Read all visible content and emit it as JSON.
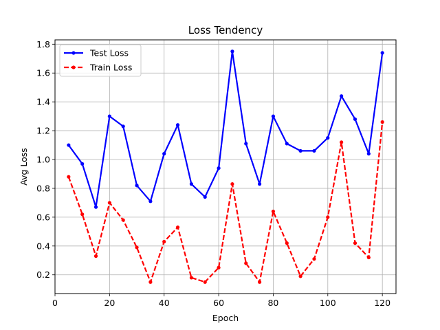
{
  "chart_data": {
    "type": "line",
    "title": "Loss Tendency",
    "xlabel": "Epoch",
    "ylabel": "Avg Loss",
    "xlim": [
      0,
      125
    ],
    "ylim": [
      0.07,
      1.83
    ],
    "xticks": [
      0,
      20,
      40,
      60,
      80,
      100,
      120
    ],
    "yticks": [
      0.2,
      0.4,
      0.6,
      0.8,
      1.0,
      1.2,
      1.4,
      1.6,
      1.8
    ],
    "ytick_labels": [
      "0.2",
      "0.4",
      "0.6",
      "0.8",
      "1.0",
      "1.2",
      "1.4",
      "1.6",
      "1.8"
    ],
    "grid": true,
    "legend_position": "top-left",
    "x": [
      5,
      10,
      15,
      20,
      25,
      30,
      35,
      40,
      45,
      50,
      55,
      60,
      65,
      70,
      75,
      80,
      85,
      90,
      95,
      100,
      105,
      110,
      115,
      120
    ],
    "series": [
      {
        "name": "Test Loss",
        "color": "#0000ff",
        "style": "solid",
        "values": [
          1.1,
          0.97,
          0.67,
          1.3,
          1.23,
          0.82,
          0.71,
          1.04,
          1.24,
          0.83,
          0.74,
          0.94,
          1.75,
          1.11,
          0.83,
          1.3,
          1.11,
          1.06,
          1.06,
          1.15,
          1.44,
          1.28,
          1.04,
          1.74
        ]
      },
      {
        "name": "Train Loss",
        "color": "#ff0000",
        "style": "dashed",
        "values": [
          0.88,
          0.62,
          0.33,
          0.7,
          0.58,
          0.39,
          0.15,
          0.43,
          0.53,
          0.18,
          0.15,
          0.25,
          0.83,
          0.28,
          0.15,
          0.64,
          0.42,
          0.19,
          0.31,
          0.6,
          1.12,
          0.42,
          0.32,
          1.26
        ]
      }
    ]
  }
}
